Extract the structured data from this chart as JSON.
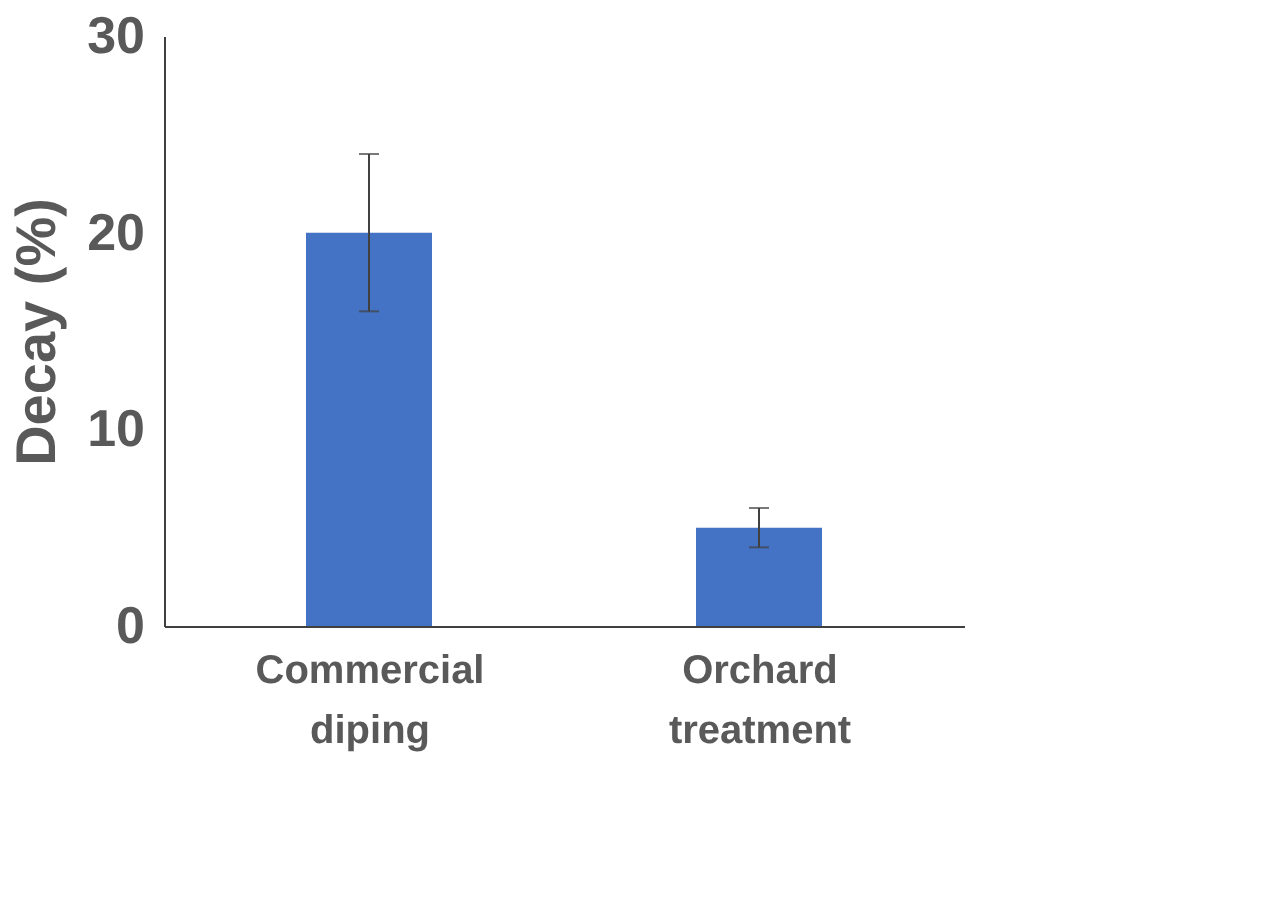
{
  "chart_data": {
    "type": "bar",
    "ylabel": "Decay (%)",
    "categories": [
      "Commercial diping",
      "Orchard treatment"
    ],
    "series": [
      {
        "color": "#4472c4",
        "values": [
          20,
          5
        ],
        "errors": [
          4,
          1
        ]
      }
    ],
    "ylim": [
      0,
      30
    ],
    "yticks": [
      0,
      10,
      20,
      30
    ],
    "grid": false
  }
}
